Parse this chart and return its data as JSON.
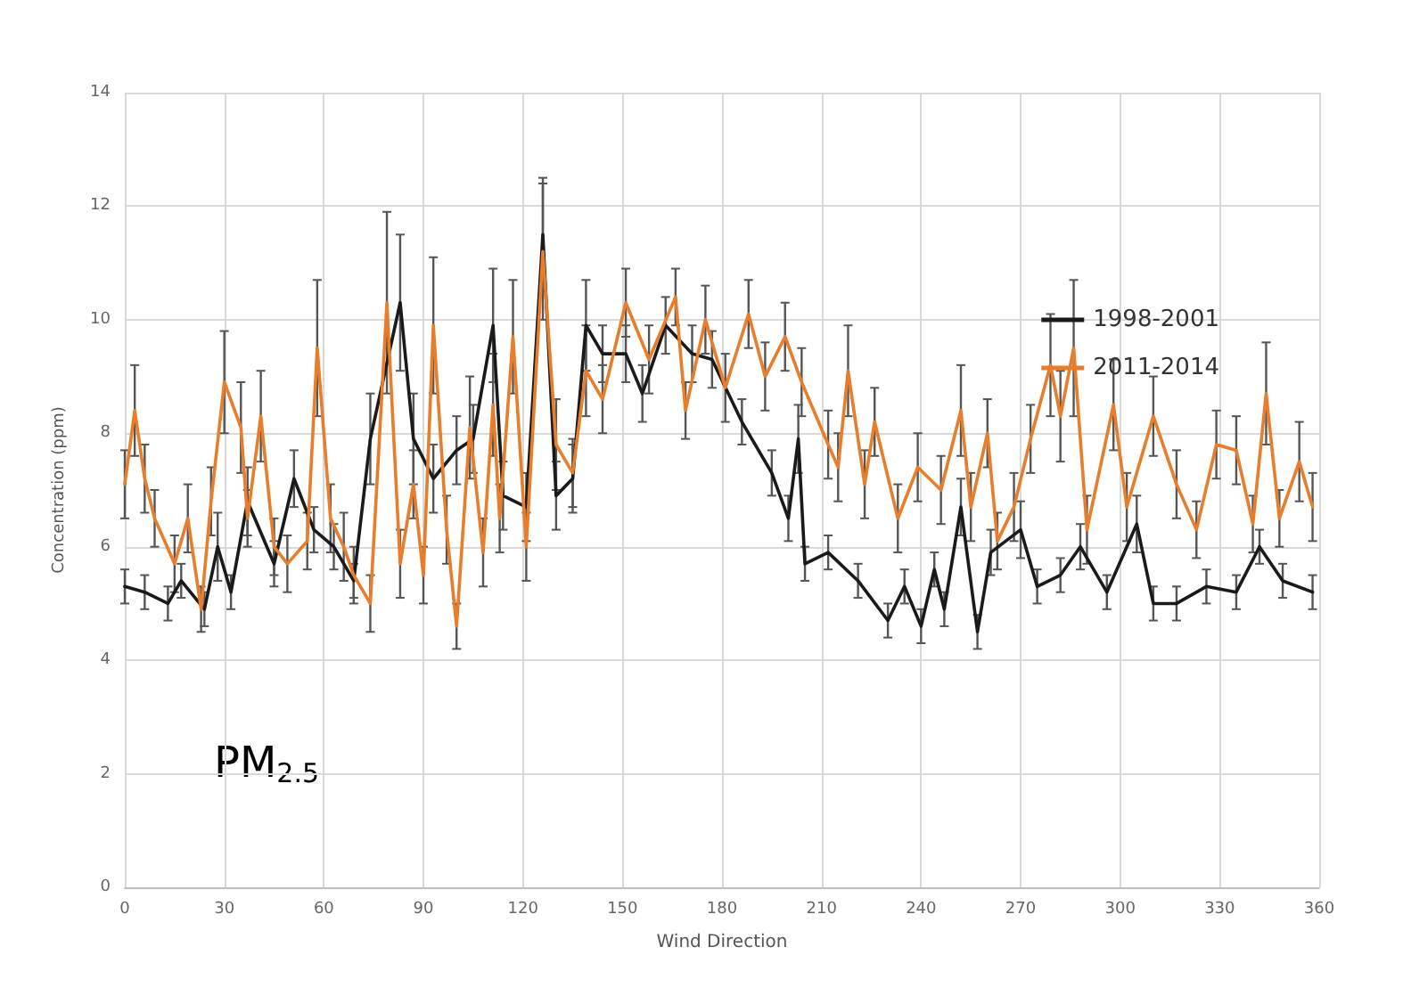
{
  "chart_data": {
    "type": "line",
    "xlabel": "Wind Direction",
    "ylabel": "Concentration (ppm)",
    "xlim": [
      0,
      360
    ],
    "xticks": [
      0,
      30,
      60,
      90,
      120,
      150,
      180,
      210,
      240,
      270,
      300,
      330,
      360
    ],
    "ylim": [
      0,
      14
    ],
    "yticks": [
      0,
      2,
      4,
      6,
      8,
      10,
      12,
      14
    ],
    "grid": true,
    "legend": "top right",
    "marker": "none",
    "line_style": "solid",
    "annotations": [
      "PM$_{2.5}$"
    ],
    "series": [
      {
        "name": "1998-2001",
        "color": "#1a1a1a",
        "x": [
          0,
          6,
          13,
          17,
          24,
          28,
          32,
          37,
          45,
          51,
          57,
          63,
          69,
          74,
          83,
          87,
          93,
          100,
          105,
          111,
          114,
          121,
          126,
          130,
          135,
          139,
          144,
          151,
          156,
          163,
          171,
          177,
          186,
          195,
          200,
          203,
          205,
          212,
          221,
          230,
          235,
          240,
          244,
          247,
          252,
          257,
          261,
          270,
          275,
          282,
          288,
          296,
          305,
          310,
          317,
          326,
          335,
          342,
          349,
          358
        ],
        "values": [
          5.3,
          5.2,
          5.0,
          5.4,
          4.9,
          6.0,
          5.2,
          6.8,
          5.7,
          7.2,
          6.3,
          6.0,
          5.4,
          7.9,
          10.3,
          7.9,
          7.2,
          7.7,
          7.9,
          9.9,
          6.9,
          6.7,
          11.5,
          6.9,
          7.2,
          9.9,
          9.4,
          9.4,
          8.7,
          9.9,
          9.4,
          9.3,
          8.2,
          7.3,
          6.5,
          7.9,
          5.7,
          5.9,
          5.4,
          4.7,
          5.3,
          4.6,
          5.6,
          4.9,
          6.7,
          4.5,
          5.9,
          6.3,
          5.3,
          5.5,
          6.0,
          5.2,
          6.4,
          5.0,
          5.0,
          5.3,
          5.2,
          6.0,
          5.4,
          5.2
        ],
        "errors": [
          0.3,
          0.3,
          0.3,
          0.3,
          0.3,
          0.6,
          0.3,
          0.6,
          0.4,
          0.5,
          0.4,
          0.4,
          0.3,
          0.8,
          1.2,
          0.8,
          0.6,
          0.6,
          0.6,
          1.0,
          0.6,
          0.6,
          1.0,
          0.6,
          0.6,
          0.8,
          0.5,
          0.5,
          0.5,
          0.5,
          0.5,
          0.5,
          0.4,
          0.4,
          0.4,
          0.6,
          0.3,
          0.3,
          0.3,
          0.3,
          0.3,
          0.3,
          0.3,
          0.3,
          0.5,
          0.3,
          0.4,
          0.5,
          0.3,
          0.3,
          0.4,
          0.3,
          0.5,
          0.3,
          0.3,
          0.3,
          0.3,
          0.3,
          0.3,
          0.3
        ]
      },
      {
        "name": "2011-2014",
        "color": "#e87d2c",
        "x": [
          0,
          3,
          6,
          9,
          15,
          19,
          23,
          26,
          30,
          35,
          37,
          41,
          45,
          49,
          55,
          58,
          62,
          66,
          69,
          74,
          79,
          83,
          87,
          90,
          93,
          97,
          100,
          104,
          108,
          111,
          113,
          117,
          121,
          126,
          130,
          135,
          139,
          144,
          151,
          158,
          166,
          169,
          175,
          181,
          188,
          193,
          199,
          204,
          212,
          215,
          218,
          223,
          226,
          233,
          239,
          246,
          252,
          255,
          260,
          263,
          268,
          273,
          279,
          282,
          286,
          290,
          298,
          302,
          310,
          317,
          323,
          329,
          335,
          340,
          344,
          348,
          354,
          358
        ],
        "values": [
          7.1,
          8.4,
          7.2,
          6.5,
          5.7,
          6.5,
          4.9,
          6.8,
          8.9,
          8.1,
          6.5,
          8.3,
          6.0,
          5.7,
          6.1,
          9.5,
          6.5,
          6.0,
          5.5,
          5.0,
          10.3,
          5.7,
          7.1,
          5.5,
          9.9,
          6.3,
          4.6,
          8.1,
          5.9,
          8.5,
          6.5,
          9.7,
          6.0,
          11.2,
          7.8,
          7.3,
          9.1,
          8.6,
          10.3,
          9.3,
          10.4,
          8.4,
          10.0,
          8.8,
          10.1,
          9.0,
          9.7,
          8.9,
          7.8,
          7.4,
          9.1,
          7.1,
          8.2,
          6.5,
          7.4,
          7.0,
          8.4,
          6.7,
          8.0,
          6.1,
          6.7,
          7.9,
          9.2,
          8.3,
          9.5,
          6.3,
          8.5,
          6.7,
          8.3,
          7.1,
          6.3,
          7.8,
          7.7,
          6.4,
          8.7,
          6.5,
          7.5,
          6.7
        ],
        "errors": [
          0.6,
          0.8,
          0.6,
          0.5,
          0.5,
          0.6,
          0.4,
          0.6,
          0.9,
          0.8,
          0.5,
          0.8,
          0.5,
          0.5,
          0.5,
          1.2,
          0.6,
          0.6,
          0.5,
          0.5,
          1.6,
          0.6,
          0.6,
          0.5,
          1.2,
          0.6,
          0.4,
          0.9,
          0.6,
          0.9,
          0.6,
          1.0,
          0.6,
          1.2,
          0.8,
          0.6,
          0.8,
          0.6,
          0.6,
          0.6,
          0.5,
          0.5,
          0.6,
          0.6,
          0.6,
          0.6,
          0.6,
          0.6,
          0.6,
          0.6,
          0.8,
          0.6,
          0.6,
          0.6,
          0.6,
          0.6,
          0.8,
          0.6,
          0.6,
          0.5,
          0.6,
          0.6,
          0.9,
          0.8,
          1.2,
          0.6,
          0.8,
          0.6,
          0.7,
          0.6,
          0.5,
          0.6,
          0.6,
          0.5,
          0.9,
          0.5,
          0.7,
          0.6
        ]
      }
    ]
  }
}
